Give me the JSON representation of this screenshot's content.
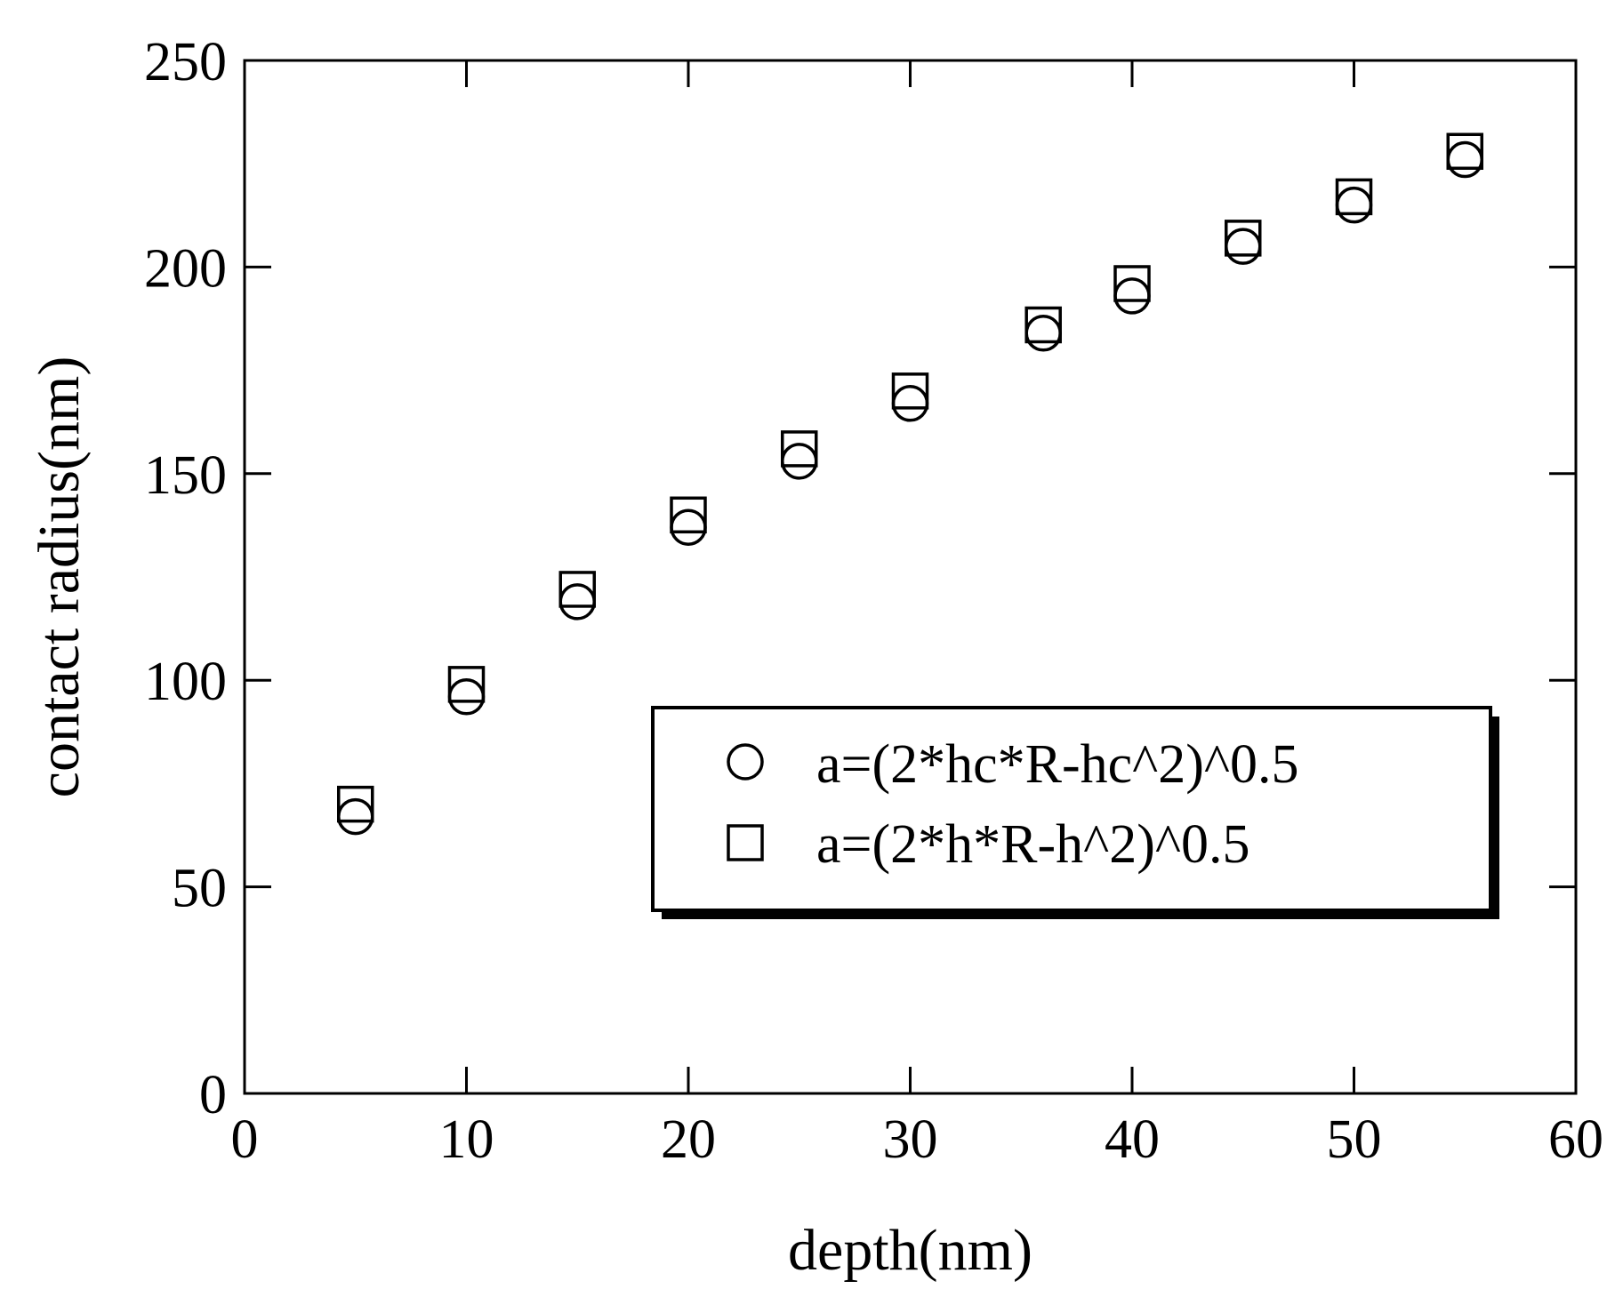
{
  "chart_data": {
    "type": "scatter",
    "xlabel": "depth(nm)",
    "ylabel": "contact radius(nm)",
    "xlim": [
      0,
      60
    ],
    "ylim": [
      0,
      250
    ],
    "xticks": [
      0,
      10,
      20,
      30,
      40,
      50,
      60
    ],
    "yticks": [
      0,
      50,
      100,
      150,
      200,
      250
    ],
    "grid": false,
    "legend_position": "lower-right",
    "series": [
      {
        "name": "a=(2*hc*R-hc^2)^0.5",
        "marker": "circle",
        "color": "#000000",
        "points": [
          {
            "x": 5,
            "y": 67
          },
          {
            "x": 10,
            "y": 96
          },
          {
            "x": 15,
            "y": 119
          },
          {
            "x": 20,
            "y": 137
          },
          {
            "x": 25,
            "y": 153
          },
          {
            "x": 30,
            "y": 167
          },
          {
            "x": 36,
            "y": 184
          },
          {
            "x": 40,
            "y": 193
          },
          {
            "x": 45,
            "y": 205
          },
          {
            "x": 50,
            "y": 215
          },
          {
            "x": 55,
            "y": 226
          }
        ]
      },
      {
        "name": "a=(2*h*R-h^2)^0.5",
        "marker": "square",
        "color": "#000000",
        "points": [
          {
            "x": 5,
            "y": 70
          },
          {
            "x": 10,
            "y": 99
          },
          {
            "x": 15,
            "y": 122
          },
          {
            "x": 20,
            "y": 140
          },
          {
            "x": 25,
            "y": 156
          },
          {
            "x": 30,
            "y": 170
          },
          {
            "x": 36,
            "y": 186
          },
          {
            "x": 40,
            "y": 196
          },
          {
            "x": 45,
            "y": 207
          },
          {
            "x": 50,
            "y": 217
          },
          {
            "x": 55,
            "y": 228
          }
        ]
      }
    ]
  }
}
